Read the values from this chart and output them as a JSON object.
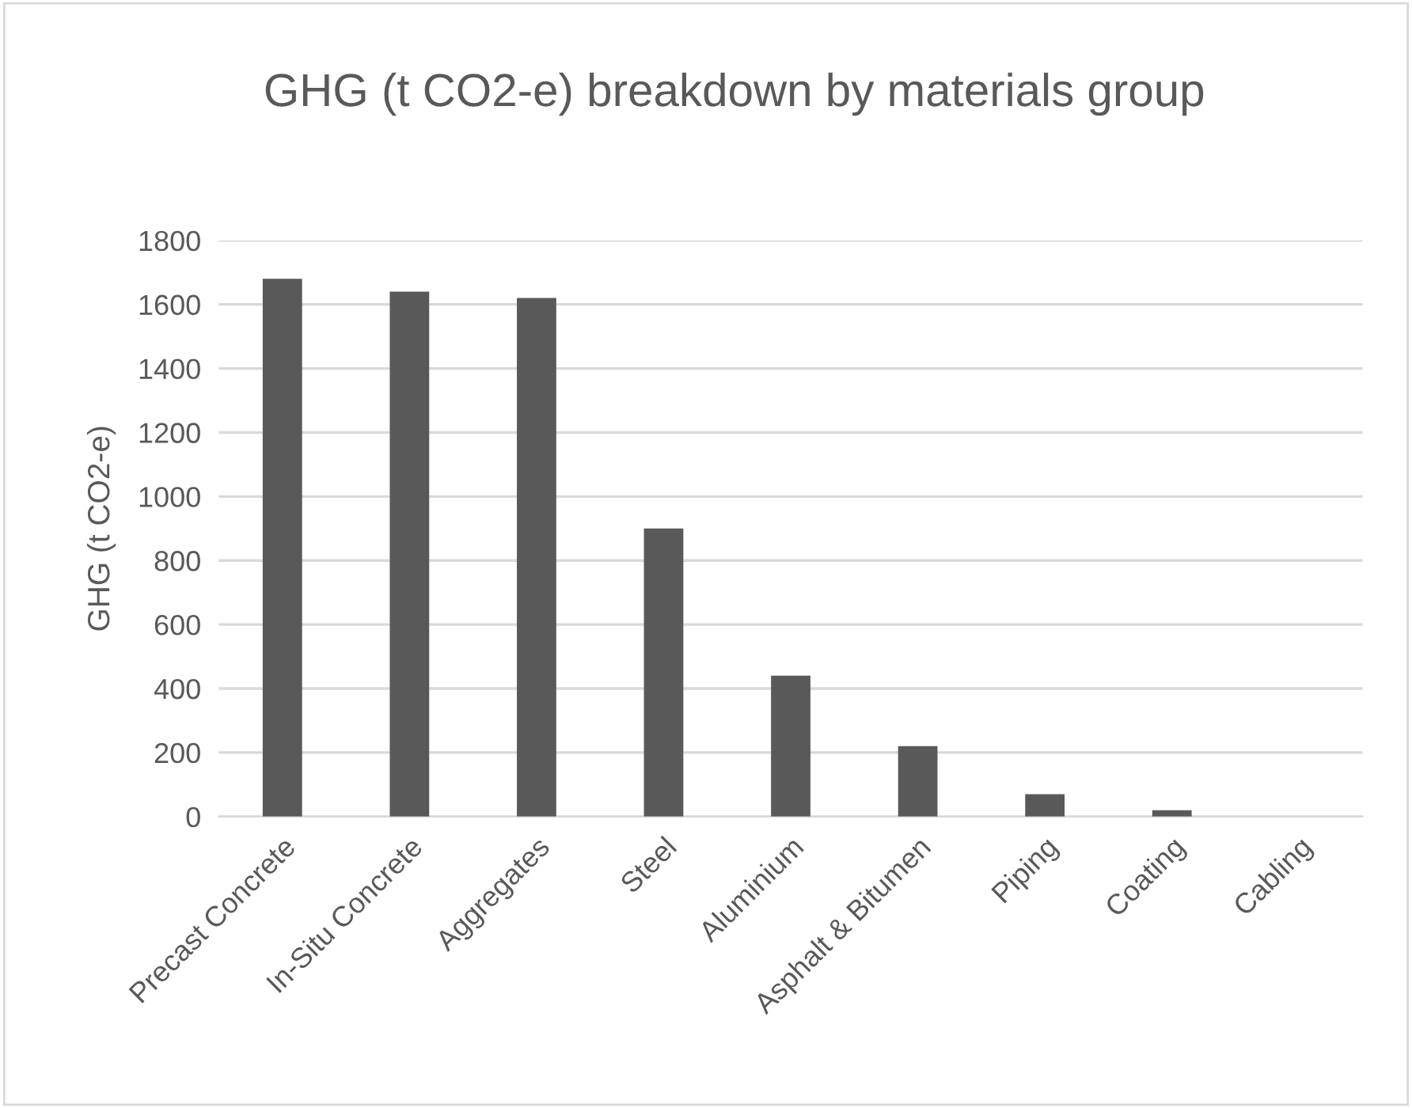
{
  "chart_data": {
    "type": "bar",
    "title": "GHG (t CO2-e) breakdown by materials group",
    "ylabel": "GHG (t CO2-e)",
    "categories": [
      "Precast Concrete",
      "In-Situ Concrete",
      "Aggregates",
      "Steel",
      "Aluminium",
      "Asphalt & Bitumen",
      "Piping",
      "Coating",
      "Cabling"
    ],
    "values": [
      1680,
      1640,
      1620,
      900,
      440,
      220,
      70,
      20,
      0
    ],
    "color": "#595959",
    "ylim": [
      0,
      1800
    ],
    "yticks": [
      0,
      200,
      400,
      600,
      800,
      1000,
      1200,
      1400,
      1600,
      1800
    ],
    "grid": "y"
  }
}
